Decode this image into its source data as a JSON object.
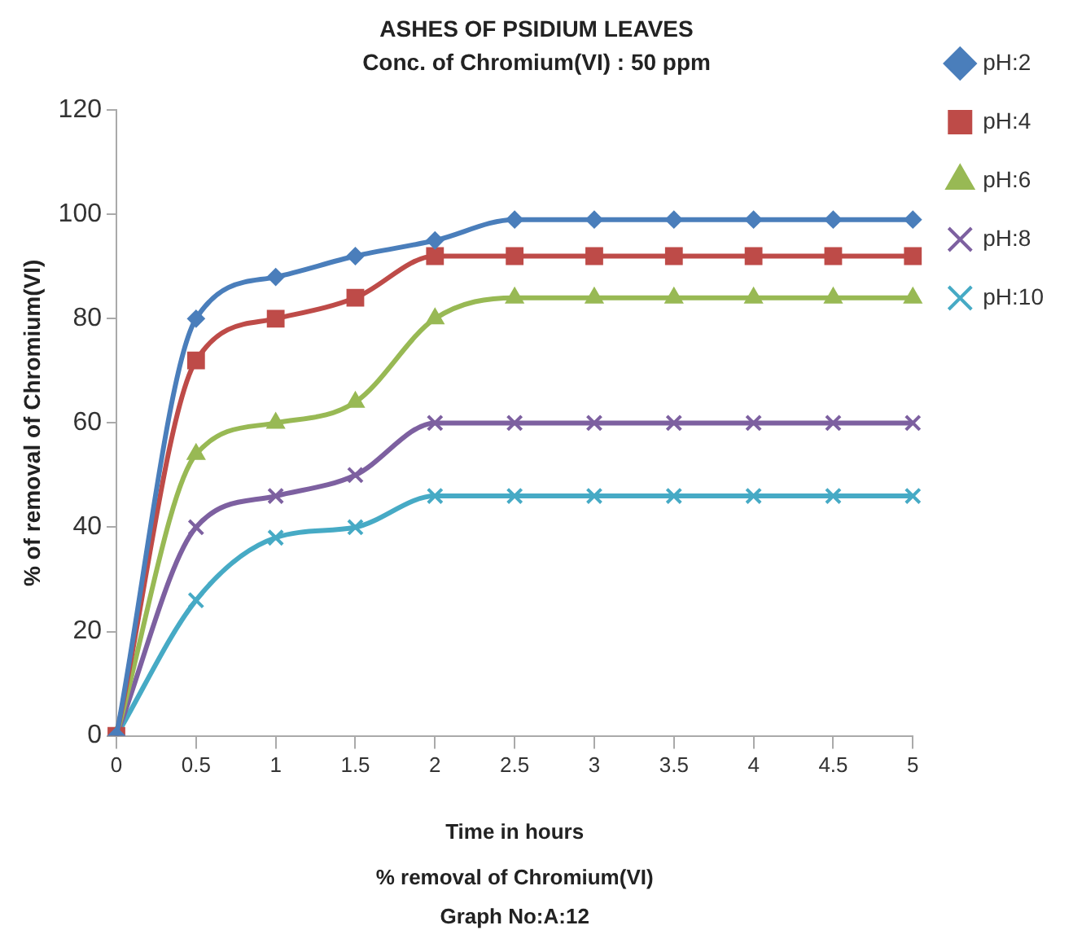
{
  "chart_data": {
    "type": "line",
    "title": "ASHES OF PSIDIUM LEAVES",
    "subtitle": "Conc. of Chromium(VI) : 50 ppm",
    "xlabel": "Time in hours",
    "ylabel": "% of removal of Chromium(VI)",
    "annotations": [
      "% removal of Chromium(VI)",
      "Graph No:A:12"
    ],
    "categories": [
      "0",
      "0.5",
      "1",
      "1.5",
      "2",
      "2.5",
      "3",
      "3.5",
      "4",
      "4.5",
      "5"
    ],
    "ylim": [
      0,
      120
    ],
    "yticks": [
      0,
      20,
      40,
      60,
      80,
      100,
      120
    ],
    "grid": false,
    "legend": "right",
    "series": [
      {
        "name": "pH:2",
        "color": "#4a7ebb",
        "marker": "diamond",
        "values": [
          0,
          80,
          88,
          92,
          95,
          99,
          99,
          99,
          99,
          99,
          99
        ]
      },
      {
        "name": "pH:4",
        "color": "#be4b48",
        "marker": "square",
        "values": [
          0,
          72,
          80,
          84,
          92,
          92,
          92,
          92,
          92,
          92,
          92
        ]
      },
      {
        "name": "pH:6",
        "color": "#98b954",
        "marker": "triangle",
        "values": [
          0,
          54,
          60,
          64,
          80,
          84,
          84,
          84,
          84,
          84,
          84
        ]
      },
      {
        "name": "pH:8",
        "color": "#7d60a0",
        "marker": "cross",
        "values": [
          0,
          40,
          46,
          50,
          60,
          60,
          60,
          60,
          60,
          60,
          60
        ]
      },
      {
        "name": "pH:10",
        "color": "#46aac5",
        "marker": "cross",
        "values": [
          0,
          26,
          38,
          40,
          46,
          46,
          46,
          46,
          46,
          46,
          46
        ]
      }
    ]
  }
}
